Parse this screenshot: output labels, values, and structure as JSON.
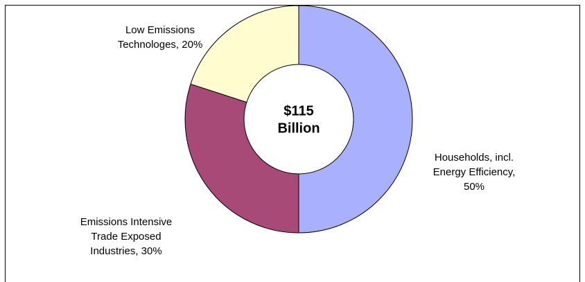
{
  "chart_data": {
    "type": "pie",
    "variant": "donut",
    "center_label": [
      "$115",
      "Billion"
    ],
    "slices": [
      {
        "label_lines": [
          "Households, incl.",
          "Energy Efficiency,",
          "50%"
        ],
        "value": 50,
        "color": "#a9b1ff"
      },
      {
        "label_lines": [
          "Emissions Intensive",
          "Trade Exposed",
          "Industries, 30%"
        ],
        "value": 30,
        "color": "#a74a78"
      },
      {
        "label_lines": [
          "Low Emissions",
          "Technologes, 20%"
        ],
        "value": 20,
        "color": "#fffdd0"
      }
    ],
    "legend": "none"
  }
}
